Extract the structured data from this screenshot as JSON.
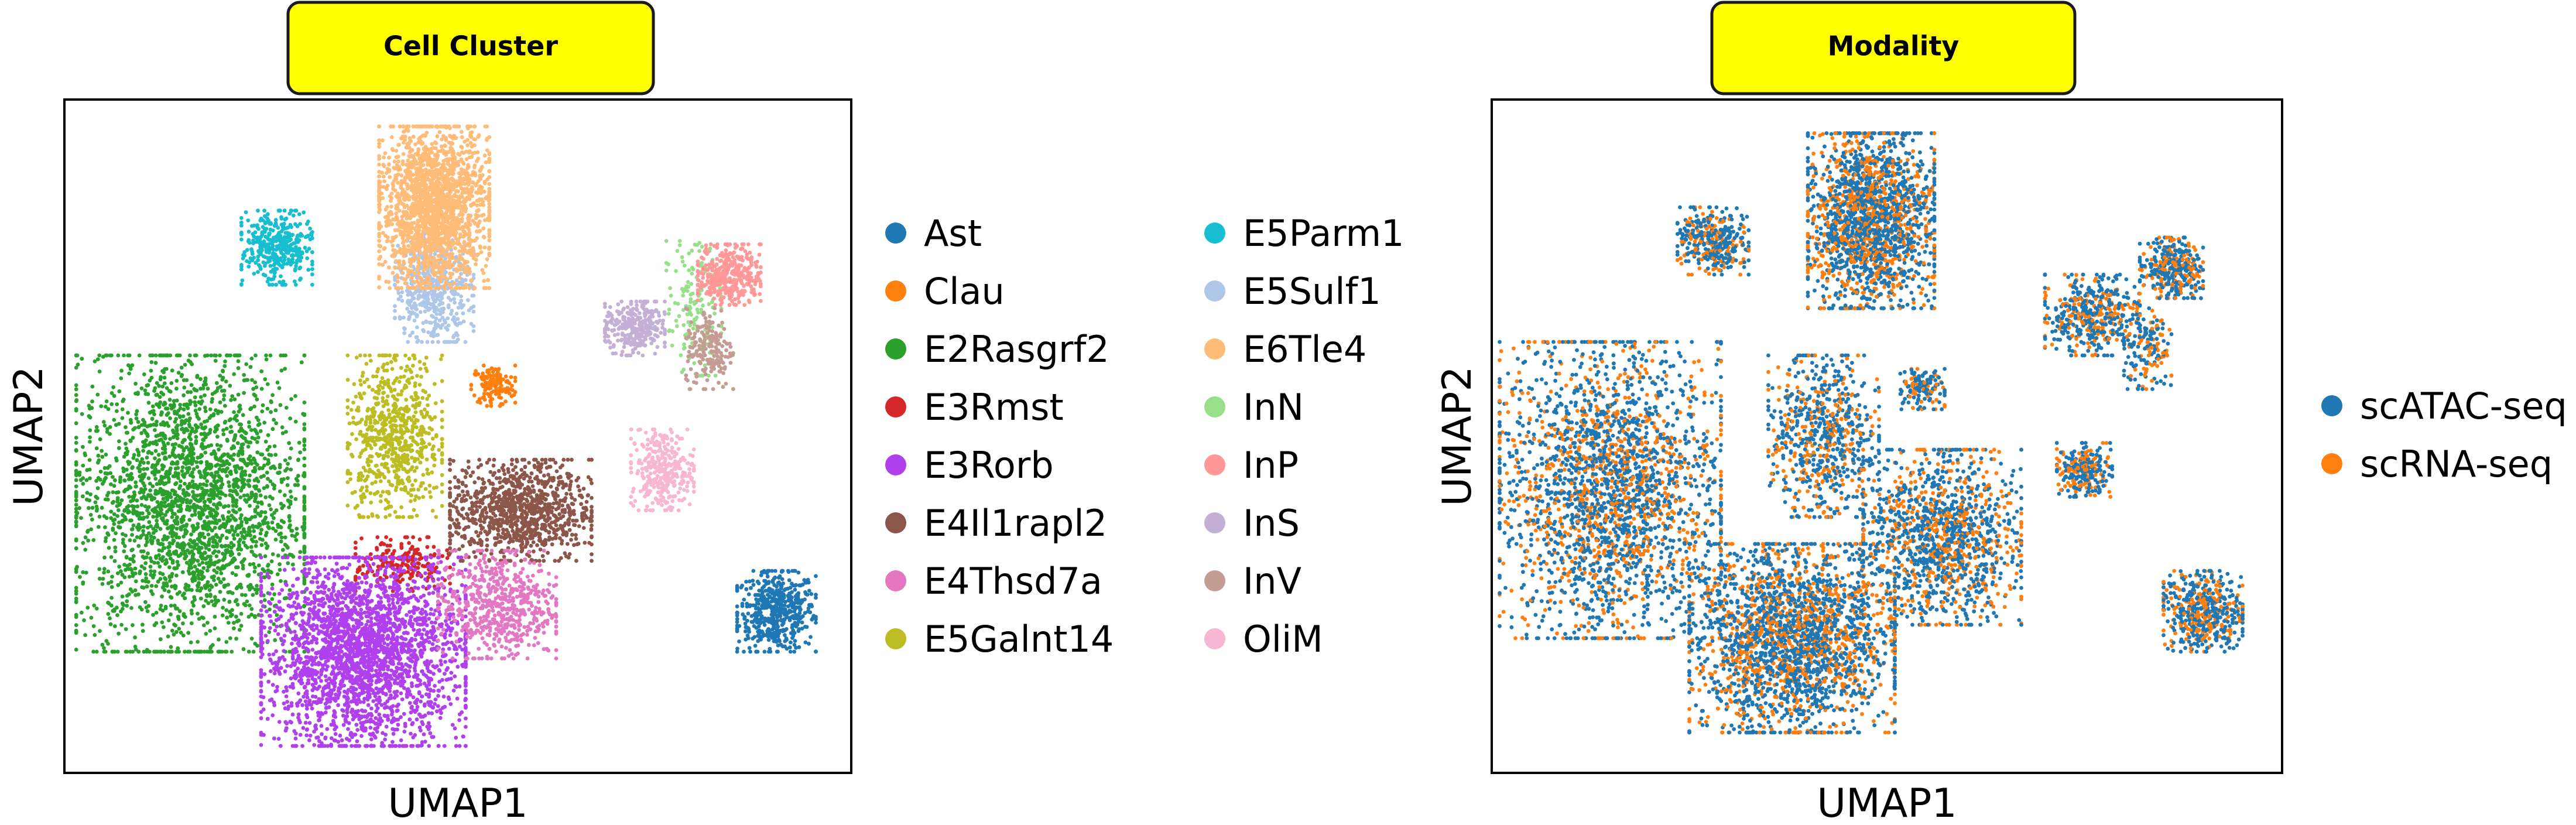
{
  "chart_data": [
    {
      "type": "scatter",
      "title": "Cell Cluster",
      "xlabel": "UMAP1",
      "ylabel": "UMAP2",
      "grid": false,
      "legend_placement": "right, two columns",
      "series": [
        {
          "name": "Ast",
          "color": "#1f77b4",
          "clusters": [
            {
              "cx": 0.905,
              "cy": 0.24,
              "rx": 0.05,
              "ry": 0.06,
              "n": 520
            }
          ]
        },
        {
          "name": "Clau",
          "color": "#ff7f0e",
          "clusters": [
            {
              "cx": 0.545,
              "cy": 0.575,
              "rx": 0.028,
              "ry": 0.03,
              "n": 140
            }
          ]
        },
        {
          "name": "E2Rasgrf2",
          "color": "#2ca02c",
          "clusters": [
            {
              "cx": 0.16,
              "cy": 0.4,
              "rx": 0.145,
              "ry": 0.22,
              "n": 2600
            }
          ]
        },
        {
          "name": "E3Rmst",
          "color": "#d62728",
          "clusters": [
            {
              "cx": 0.43,
              "cy": 0.31,
              "rx": 0.06,
              "ry": 0.04,
              "n": 200
            }
          ]
        },
        {
          "name": "E3Rorb",
          "color": "#b040ee",
          "clusters": [
            {
              "cx": 0.38,
              "cy": 0.18,
              "rx": 0.13,
              "ry": 0.14,
              "n": 2600
            }
          ]
        },
        {
          "name": "E4Il1rapl2",
          "color": "#8c564b",
          "clusters": [
            {
              "cx": 0.58,
              "cy": 0.39,
              "rx": 0.09,
              "ry": 0.075,
              "n": 1000
            }
          ]
        },
        {
          "name": "E4Thsd7a",
          "color": "#e377c2",
          "clusters": [
            {
              "cx": 0.55,
              "cy": 0.25,
              "rx": 0.075,
              "ry": 0.08,
              "n": 600
            }
          ]
        },
        {
          "name": "E5Galnt14",
          "color": "#bcbd22",
          "clusters": [
            {
              "cx": 0.42,
              "cy": 0.5,
              "rx": 0.06,
              "ry": 0.12,
              "n": 700
            }
          ]
        },
        {
          "name": "E5Parm1",
          "color": "#17becf",
          "clusters": [
            {
              "cx": 0.27,
              "cy": 0.78,
              "rx": 0.045,
              "ry": 0.055,
              "n": 380
            }
          ]
        },
        {
          "name": "E5Sulf1",
          "color": "#aec7e8",
          "clusters": [
            {
              "cx": 0.47,
              "cy": 0.72,
              "rx": 0.05,
              "ry": 0.08,
              "n": 500
            }
          ]
        },
        {
          "name": "E6Tle4",
          "color": "#ffbb78",
          "clusters": [
            {
              "cx": 0.47,
              "cy": 0.84,
              "rx": 0.07,
              "ry": 0.12,
              "n": 2000
            }
          ]
        },
        {
          "name": "InN",
          "color": "#98df8a",
          "clusters": [
            {
              "cx": 0.8,
              "cy": 0.69,
              "rx": 0.035,
              "ry": 0.1,
              "n": 160
            }
          ]
        },
        {
          "name": "InP",
          "color": "#ff9896",
          "clusters": [
            {
              "cx": 0.845,
              "cy": 0.74,
              "rx": 0.04,
              "ry": 0.045,
              "n": 380
            }
          ]
        },
        {
          "name": "InS",
          "color": "#c5b0d5",
          "clusters": [
            {
              "cx": 0.725,
              "cy": 0.66,
              "rx": 0.038,
              "ry": 0.04,
              "n": 320
            }
          ]
        },
        {
          "name": "InV",
          "color": "#c49c94",
          "clusters": [
            {
              "cx": 0.82,
              "cy": 0.63,
              "rx": 0.03,
              "ry": 0.06,
              "n": 180
            }
          ]
        },
        {
          "name": "OliM",
          "color": "#f7b6d2",
          "clusters": [
            {
              "cx": 0.76,
              "cy": 0.45,
              "rx": 0.04,
              "ry": 0.06,
              "n": 320
            }
          ]
        }
      ]
    },
    {
      "type": "scatter",
      "title": "Modality",
      "xlabel": "UMAP1",
      "ylabel": "UMAP2",
      "grid": false,
      "legend_placement": "right",
      "series": [
        {
          "name": "scATAC-seq",
          "color": "#1f77b4"
        },
        {
          "name": "scRNA-seq",
          "color": "#ff7f0e"
        }
      ],
      "shape": [
        {
          "cx": 0.15,
          "cy": 0.42,
          "rx": 0.14,
          "ry": 0.22,
          "n": 2400
        },
        {
          "cx": 0.38,
          "cy": 0.2,
          "rx": 0.13,
          "ry": 0.14,
          "n": 2400
        },
        {
          "cx": 0.57,
          "cy": 0.35,
          "rx": 0.1,
          "ry": 0.13,
          "n": 1300
        },
        {
          "cx": 0.42,
          "cy": 0.5,
          "rx": 0.07,
          "ry": 0.12,
          "n": 700
        },
        {
          "cx": 0.48,
          "cy": 0.82,
          "rx": 0.08,
          "ry": 0.13,
          "n": 1900
        },
        {
          "cx": 0.28,
          "cy": 0.79,
          "rx": 0.045,
          "ry": 0.05,
          "n": 380
        },
        {
          "cx": 0.545,
          "cy": 0.57,
          "rx": 0.028,
          "ry": 0.03,
          "n": 140
        },
        {
          "cx": 0.76,
          "cy": 0.68,
          "rx": 0.06,
          "ry": 0.06,
          "n": 450
        },
        {
          "cx": 0.86,
          "cy": 0.75,
          "rx": 0.04,
          "ry": 0.045,
          "n": 350
        },
        {
          "cx": 0.83,
          "cy": 0.63,
          "rx": 0.03,
          "ry": 0.06,
          "n": 160
        },
        {
          "cx": 0.75,
          "cy": 0.45,
          "rx": 0.035,
          "ry": 0.04,
          "n": 260
        },
        {
          "cx": 0.9,
          "cy": 0.24,
          "rx": 0.05,
          "ry": 0.06,
          "n": 520
        }
      ],
      "rna_fraction": 0.35
    }
  ]
}
